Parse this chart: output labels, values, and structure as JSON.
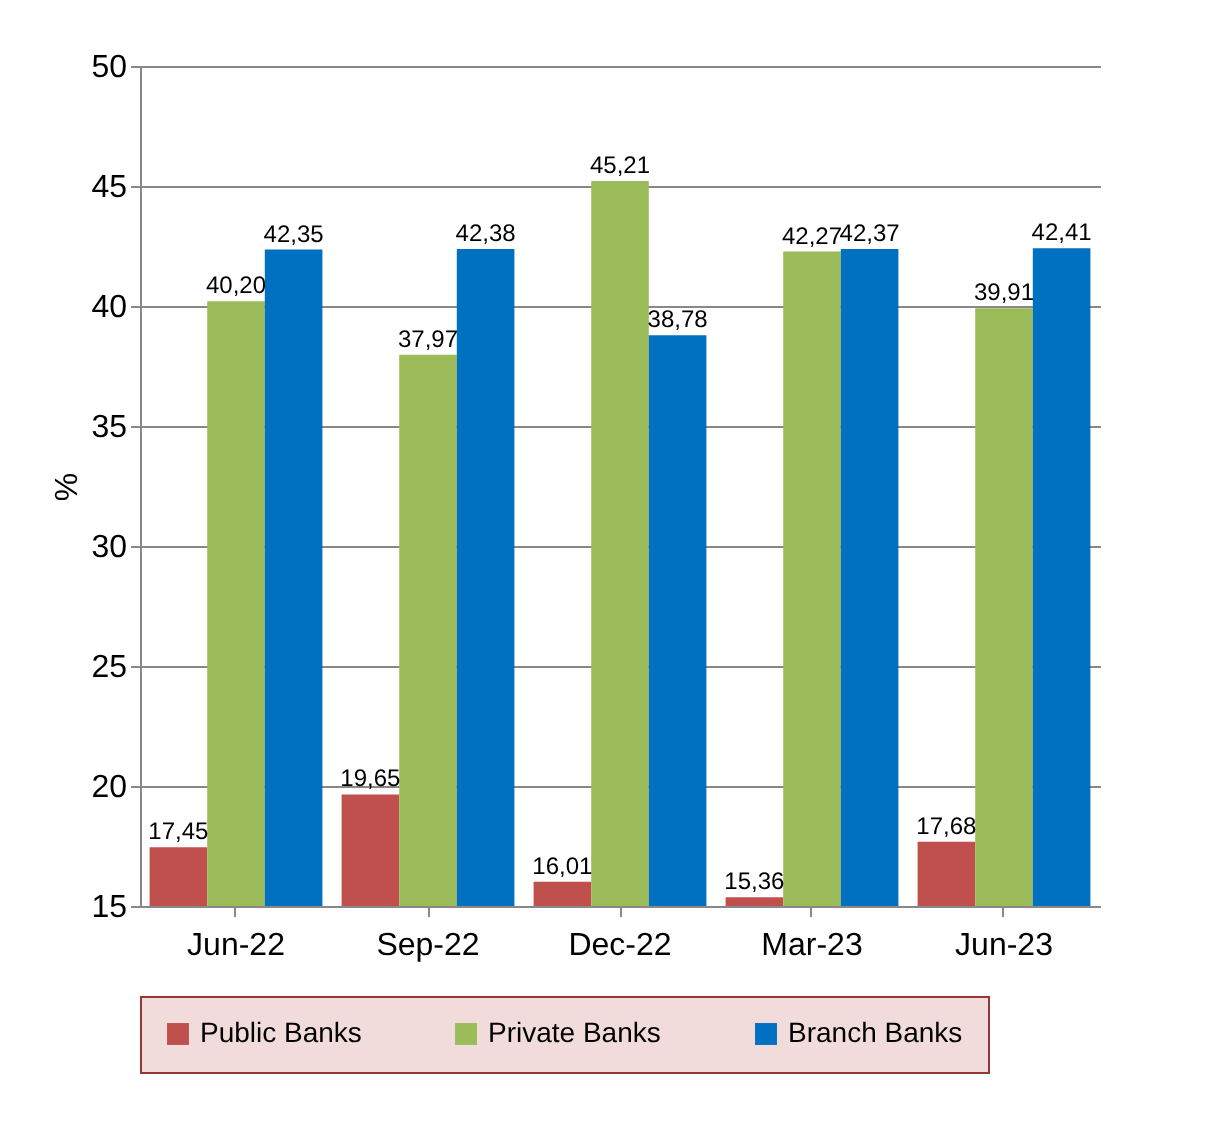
{
  "chart_data": {
    "type": "bar",
    "ylabel": "%",
    "categories": [
      "Jun-22",
      "Sep-22",
      "Dec-22",
      "Mar-23",
      "Jun-23"
    ],
    "series": [
      {
        "name": "Public Banks",
        "color": "#c0504d",
        "values": [
          17.45,
          19.65,
          16.01,
          15.36,
          17.68
        ],
        "value_labels": [
          "17,45",
          "19,65",
          "16,01",
          "15,36",
          "17,68"
        ]
      },
      {
        "name": "Private Banks",
        "color": "#9bbb59",
        "values": [
          40.2,
          37.97,
          45.21,
          42.27,
          39.91
        ],
        "value_labels": [
          "40,20",
          "37,97",
          "45,21",
          "42,27",
          "39,91"
        ]
      },
      {
        "name": "Branch Banks",
        "color": "#0070c0",
        "values": [
          42.35,
          42.38,
          38.78,
          42.37,
          42.41
        ],
        "value_labels": [
          "42,35",
          "42,38",
          "38,78",
          "42,37",
          "42,41"
        ]
      }
    ],
    "ylim": [
      15,
      50
    ],
    "yticks": [
      15,
      20,
      25,
      30,
      35,
      40,
      45,
      50
    ],
    "grid": "y",
    "legend": "bottom"
  }
}
